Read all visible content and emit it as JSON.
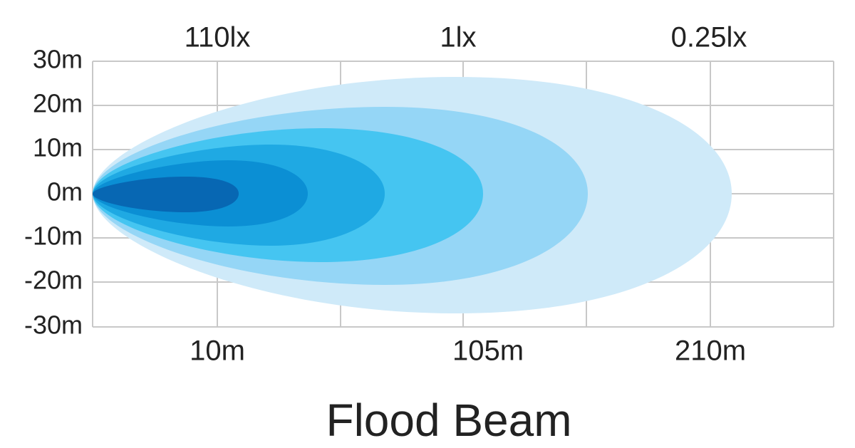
{
  "top_labels": [
    "110lx",
    "1lx",
    "0.25lx"
  ],
  "y_labels": [
    "30m",
    "20m",
    "10m",
    "0m",
    "-10m",
    "-20m",
    "-30m"
  ],
  "bottom_labels": [
    "10m",
    "105m",
    "210m"
  ],
  "title": "Flood Beam"
}
